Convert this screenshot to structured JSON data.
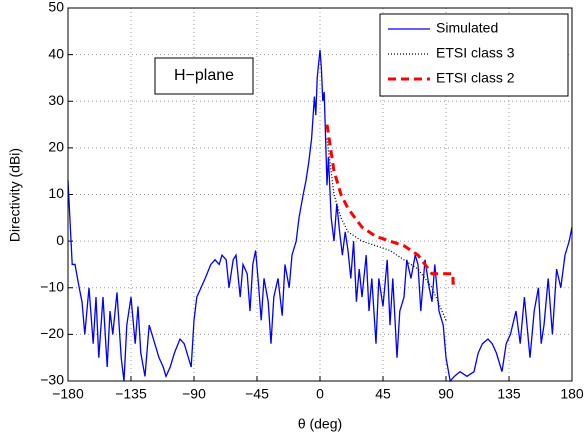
{
  "chart_data": {
    "type": "line",
    "xlabel": "θ (deg)",
    "ylabel": "Directivity (dBi)",
    "annotation": "H−plane",
    "xlim": [
      -180,
      180
    ],
    "xticks": [
      {
        "value": -180,
        "label": "−180"
      },
      {
        "value": -135,
        "label": "−135"
      },
      {
        "value": -90,
        "label": "−90"
      },
      {
        "value": -45,
        "label": "−45"
      },
      0,
      45,
      90,
      135,
      180
    ],
    "ylim": [
      -30,
      50
    ],
    "yticks": [
      {
        "value": -30,
        "label": "−30"
      },
      {
        "value": -20,
        "label": "−20"
      },
      {
        "value": -10,
        "label": "−10"
      },
      0,
      10,
      20,
      30,
      40,
      50
    ],
    "grid": true,
    "legend": "upper right",
    "series": [
      {
        "name": "Simulated",
        "color": "#0000ff",
        "dash": "solid",
        "x": [
          -180,
          -177,
          -175,
          -172,
          -170,
          -168,
          -165,
          -162,
          -160,
          -158,
          -155,
          -152,
          -150,
          -148,
          -145,
          -142,
          -140,
          -138,
          -135,
          -132,
          -130,
          -128,
          -125,
          -122,
          -120,
          -118,
          -115,
          -112,
          -110,
          -107,
          -104,
          -100,
          -97,
          -94,
          -92,
          -90,
          -88,
          -85,
          -82,
          -78,
          -75,
          -72,
          -70,
          -67,
          -65,
          -62,
          -60,
          -57,
          -55,
          -52,
          -50,
          -48,
          -46,
          -44,
          -42,
          -40,
          -37,
          -35,
          -33,
          -30,
          -27,
          -25,
          -22,
          -20,
          -17,
          -15,
          -12,
          -10,
          -8,
          -6,
          -4,
          -3,
          -2,
          0,
          1,
          2,
          3,
          4,
          5,
          6,
          8,
          10,
          12,
          14,
          16,
          18,
          20,
          22,
          24,
          26,
          28,
          30,
          33,
          35,
          37,
          40,
          42,
          45,
          48,
          50,
          52,
          55,
          57,
          60,
          62,
          65,
          68,
          70,
          72,
          75,
          78,
          80,
          82,
          85,
          88,
          90,
          93,
          96,
          100,
          105,
          110,
          113,
          116,
          120,
          123,
          126,
          130,
          133,
          136,
          140,
          143,
          146,
          150,
          153,
          156,
          158,
          160,
          163,
          166,
          169,
          172,
          175,
          178,
          180
        ],
        "values": [
          13,
          -5,
          -5,
          -10,
          -13,
          -20,
          -10,
          -22,
          -12,
          -25,
          -12,
          -27,
          -15,
          -20,
          -11,
          -25,
          -30,
          -18,
          -12,
          -22,
          -14,
          -24,
          -29,
          -18,
          -20,
          -22,
          -25,
          -27,
          -29,
          -27,
          -24,
          -21,
          -22,
          -25,
          -27,
          -17,
          -12,
          -10,
          -8,
          -5,
          -4,
          -5,
          -3,
          -4,
          -10,
          -4,
          -3,
          -12,
          -5,
          -7,
          -15,
          -5,
          -2,
          -9,
          -17,
          -8,
          -13,
          -22,
          -12,
          -8,
          -16,
          -5,
          -10,
          -3,
          0,
          5,
          10,
          13,
          17,
          22,
          31,
          27,
          35,
          41,
          37,
          30,
          32,
          22,
          12,
          18,
          5,
          0,
          8,
          2,
          -3,
          2,
          -2,
          -8,
          0,
          -13,
          -6,
          -12,
          -3,
          -15,
          -8,
          -22,
          -8,
          -14,
          -4,
          -18,
          -8,
          -25,
          -15,
          -12,
          -4,
          -8,
          -3,
          -5,
          -15,
          -4,
          -10,
          -13,
          -5,
          -15,
          -18,
          -25,
          -30,
          -29,
          -28,
          -29,
          -28,
          -24,
          -22,
          -21,
          -22,
          -24,
          -28,
          -22,
          -20,
          -15,
          -22,
          -12,
          -25,
          -15,
          -10,
          -22,
          -18,
          -8,
          -20,
          -6,
          -10,
          -3,
          0,
          3
        ]
      },
      {
        "name": "ETSI class 3",
        "color": "#000000",
        "dash": "dotted",
        "x": [
          5,
          10,
          15,
          20,
          30,
          40,
          50,
          60,
          70,
          80,
          90
        ],
        "values": [
          22,
          10,
          5,
          2,
          0,
          -1,
          -2,
          -4,
          -6,
          -10,
          -17
        ]
      },
      {
        "name": "ETSI class 2",
        "color": "#ff0000",
        "dash": "dashed",
        "x": [
          5,
          10,
          15,
          20,
          30,
          40,
          50,
          60,
          70,
          80,
          85,
          95,
          95,
          100,
          100
        ],
        "values": [
          25,
          15,
          10,
          7,
          3,
          1,
          0,
          -1,
          -3,
          -7,
          -7,
          -7,
          -9,
          -9,
          -9
        ]
      }
    ]
  }
}
